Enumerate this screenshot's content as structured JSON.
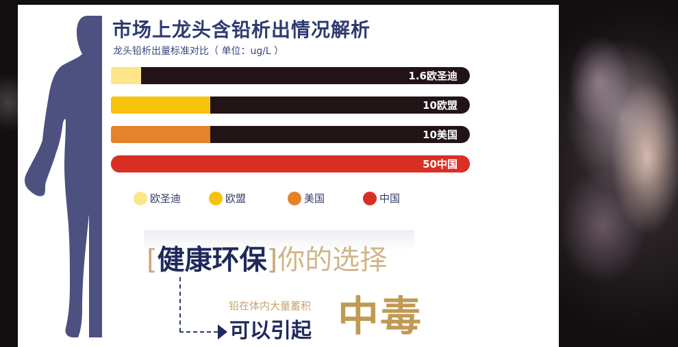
{
  "title": "市场上龙头含铅析出情况解析",
  "subtitle": "龙头铅析出量标准对比（ 单位：ug/L ）",
  "chart_data": {
    "type": "bar",
    "orientation": "horizontal",
    "unit": "ug/L",
    "xlim": [
      0,
      50
    ],
    "bars": [
      {
        "label": "1.6欧圣迪",
        "name": "欧圣迪",
        "value": 1.6,
        "color": "#fde58a"
      },
      {
        "label": "10欧盟",
        "name": "欧盟",
        "value": 10,
        "color": "#f7c20c"
      },
      {
        "label": "10美国",
        "name": "美国",
        "value": 10,
        "color": "#e6822a"
      },
      {
        "label": "50中国",
        "name": "中国",
        "value": 50,
        "color": "#dc2f24"
      }
    ],
    "track_color": "#221416",
    "legend": [
      {
        "label": "欧圣迪",
        "color": "#fde58a"
      },
      {
        "label": "欧盟",
        "color": "#f7c20c"
      },
      {
        "label": "美国",
        "color": "#e6822a"
      },
      {
        "label": "中国",
        "color": "#dc2f24"
      }
    ]
  },
  "slogan": {
    "bracket_open": "[",
    "strong": "健康环保",
    "bracket_close": "]",
    "light": "你的选择"
  },
  "note": "铅在体内大量蓄积",
  "cause": "可以引起",
  "poison": "中毒"
}
